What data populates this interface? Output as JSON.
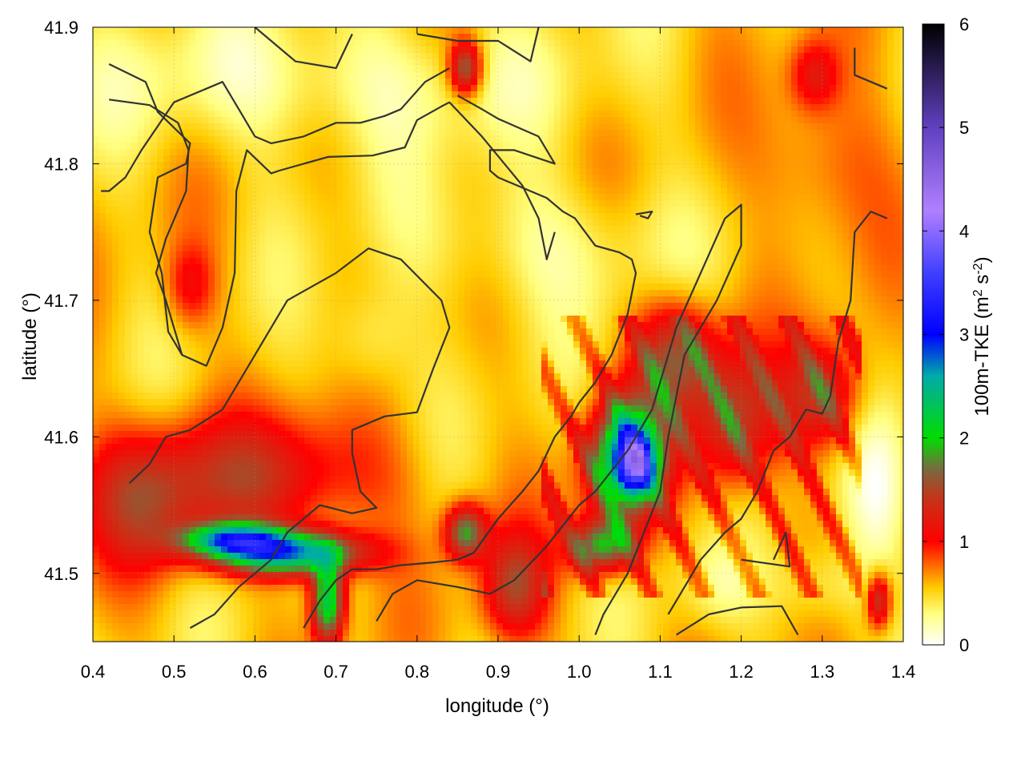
{
  "chart_data": {
    "type": "heatmap",
    "title": "",
    "xlabel": "longitude (°)",
    "ylabel": "latitude (°)",
    "xlim": [
      0.4,
      1.4
    ],
    "ylim": [
      41.45,
      41.9
    ],
    "x_ticks": [
      0.4,
      0.5,
      0.6,
      0.7,
      0.8,
      0.9,
      1.0,
      1.1,
      1.2,
      1.3,
      1.4
    ],
    "x_tick_labels": [
      "0.4",
      "0.5",
      "0.6",
      "0.7",
      "0.8",
      "0.9",
      "1.0",
      "1.1",
      "1.2",
      "1.3",
      "1.4"
    ],
    "y_ticks": [
      41.5,
      41.6,
      41.7,
      41.8,
      41.9
    ],
    "y_tick_labels": [
      "41.5",
      "41.6",
      "41.7",
      "41.8",
      "41.9"
    ],
    "grid": true,
    "colorbar": {
      "label": "100m-TKE (m² s⁻²)",
      "label_main": "100m-TKE (m",
      "label_sup1": "2",
      "label_mid": " s",
      "label_sup2": "-2",
      "label_end": ")",
      "range": [
        0,
        6
      ],
      "ticks": [
        0,
        1,
        2,
        3,
        4,
        5,
        6
      ],
      "tick_labels": [
        "0",
        "1",
        "2",
        "3",
        "4",
        "5",
        "6"
      ],
      "stops": [
        {
          "value": 0.0,
          "color": "#ffffff"
        },
        {
          "value": 0.3,
          "color": "#ffff80"
        },
        {
          "value": 0.55,
          "color": "#ffcc00"
        },
        {
          "value": 1.0,
          "color": "#ff0000"
        },
        {
          "value": 1.4,
          "color": "#c83218"
        },
        {
          "value": 1.7,
          "color": "#7a6a40"
        },
        {
          "value": 2.0,
          "color": "#00dd00"
        },
        {
          "value": 2.6,
          "color": "#00aaaa"
        },
        {
          "value": 3.0,
          "color": "#0000ff"
        },
        {
          "value": 3.6,
          "color": "#4040ff"
        },
        {
          "value": 4.2,
          "color": "#b080ff"
        },
        {
          "value": 5.0,
          "color": "#6040c0"
        },
        {
          "value": 6.0,
          "color": "#000000"
        }
      ]
    },
    "contour_color": "#333333",
    "tke_features": [
      {
        "lon": 0.68,
        "lat": 41.86,
        "sx": 0.3,
        "sy": 0.05,
        "v": -0.35
      },
      {
        "lon": 0.95,
        "lat": 41.74,
        "sx": 0.15,
        "sy": 0.05,
        "v": -0.3
      },
      {
        "lon": 0.74,
        "lat": 41.67,
        "sx": 0.05,
        "sy": 0.04,
        "v": -0.3
      },
      {
        "lon": 1.37,
        "lat": 41.56,
        "sx": 0.04,
        "sy": 0.06,
        "v": -0.45
      },
      {
        "lon": 1.3,
        "lat": 41.49,
        "sx": 0.06,
        "sy": 0.03,
        "v": -0.3
      },
      {
        "lon": 1.17,
        "lat": 41.49,
        "sx": 0.05,
        "sy": 0.03,
        "v": -0.25
      },
      {
        "lon": 0.6,
        "lat": 41.57,
        "sx": 0.16,
        "sy": 0.045,
        "v": 0.75
      },
      {
        "lon": 0.46,
        "lat": 41.55,
        "sx": 0.07,
        "sy": 0.05,
        "v": 0.6
      },
      {
        "lon": 0.64,
        "lat": 41.515,
        "sx": 0.09,
        "sy": 0.016,
        "v": 2.1
      },
      {
        "lon": 0.57,
        "lat": 41.525,
        "sx": 0.06,
        "sy": 0.012,
        "v": 1.6
      },
      {
        "lon": 0.69,
        "lat": 41.48,
        "sx": 0.02,
        "sy": 0.03,
        "v": 1.8
      },
      {
        "lon": 0.86,
        "lat": 41.53,
        "sx": 0.025,
        "sy": 0.02,
        "v": 1.3
      },
      {
        "lon": 1.06,
        "lat": 41.585,
        "sx": 0.045,
        "sy": 0.04,
        "v": 2.2
      },
      {
        "lon": 1.07,
        "lat": 41.58,
        "sx": 0.02,
        "sy": 0.02,
        "v": 1.5
      },
      {
        "lon": 1.03,
        "lat": 41.52,
        "sx": 0.04,
        "sy": 0.02,
        "v": 1.4
      },
      {
        "lon": 1.12,
        "lat": 41.66,
        "sx": 0.05,
        "sy": 0.04,
        "v": 1.0
      },
      {
        "lon": 1.19,
        "lat": 41.61,
        "sx": 0.05,
        "sy": 0.05,
        "v": 0.9
      },
      {
        "lon": 1.3,
        "lat": 41.63,
        "sx": 0.05,
        "sy": 0.04,
        "v": 0.9
      },
      {
        "lon": 0.92,
        "lat": 41.49,
        "sx": 0.04,
        "sy": 0.04,
        "v": 0.9
      },
      {
        "lon": 0.86,
        "lat": 41.87,
        "sx": 0.02,
        "sy": 0.02,
        "v": 1.2
      },
      {
        "lon": 0.52,
        "lat": 41.71,
        "sx": 0.03,
        "sy": 0.03,
        "v": 0.5
      },
      {
        "lon": 1.3,
        "lat": 41.8,
        "sx": 0.08,
        "sy": 0.06,
        "v": 0.35
      },
      {
        "lon": 1.29,
        "lat": 41.865,
        "sx": 0.03,
        "sy": 0.025,
        "v": 0.6
      },
      {
        "lon": 1.37,
        "lat": 41.48,
        "sx": 0.015,
        "sy": 0.02,
        "v": 1.0
      }
    ],
    "contours": [
      [
        [
          0.42,
          41.873
        ],
        [
          0.465,
          41.86
        ],
        [
          0.48,
          41.838
        ],
        [
          0.52,
          41.815
        ],
        [
          0.515,
          41.8
        ],
        [
          0.48,
          41.79
        ],
        [
          0.47,
          41.75
        ],
        [
          0.485,
          41.72
        ],
        [
          0.493,
          41.677
        ],
        [
          0.51,
          41.66
        ]
      ],
      [
        [
          0.42,
          41.847
        ],
        [
          0.47,
          41.843
        ],
        [
          0.505,
          41.83
        ],
        [
          0.518,
          41.81
        ],
        [
          0.515,
          41.78
        ],
        [
          0.49,
          41.745
        ],
        [
          0.478,
          41.72
        ],
        [
          0.49,
          41.7
        ],
        [
          0.51,
          41.66
        ],
        [
          0.54,
          41.652
        ],
        [
          0.56,
          41.68
        ],
        [
          0.575,
          41.72
        ],
        [
          0.577,
          41.78
        ],
        [
          0.59,
          41.81
        ],
        [
          0.62,
          41.793
        ],
        [
          0.63,
          41.795
        ],
        [
          0.69,
          41.805
        ],
        [
          0.745,
          41.806
        ],
        [
          0.785,
          41.812
        ],
        [
          0.8,
          41.832
        ],
        [
          0.83,
          41.842
        ],
        [
          0.84,
          41.845
        ],
        [
          0.88,
          41.82
        ],
        [
          0.93,
          41.784
        ],
        [
          0.95,
          41.76
        ],
        [
          0.96,
          41.73
        ],
        [
          0.97,
          41.75
        ]
      ],
      [
        [
          0.41,
          41.78
        ],
        [
          0.42,
          41.78
        ],
        [
          0.44,
          41.79
        ],
        [
          0.46,
          41.81
        ],
        [
          0.5,
          41.845
        ],
        [
          0.54,
          41.855
        ],
        [
          0.56,
          41.86
        ],
        [
          0.58,
          41.84
        ],
        [
          0.6,
          41.82
        ],
        [
          0.62,
          41.815
        ],
        [
          0.66,
          41.82
        ],
        [
          0.7,
          41.83
        ],
        [
          0.73,
          41.83
        ],
        [
          0.76,
          41.835
        ],
        [
          0.78,
          41.84
        ],
        [
          0.81,
          41.86
        ],
        [
          0.84,
          41.87
        ]
      ],
      [
        [
          0.6,
          41.9
        ],
        [
          0.65,
          41.875
        ],
        [
          0.7,
          41.87
        ],
        [
          0.72,
          41.895
        ]
      ],
      [
        [
          0.8,
          41.895
        ],
        [
          0.85,
          41.89
        ],
        [
          0.9,
          41.89
        ],
        [
          0.94,
          41.875
        ],
        [
          0.95,
          41.9
        ]
      ],
      [
        [
          0.445,
          41.566
        ],
        [
          0.47,
          41.58
        ],
        [
          0.49,
          41.6
        ],
        [
          0.52,
          41.605
        ],
        [
          0.56,
          41.62
        ],
        [
          0.6,
          41.66
        ],
        [
          0.64,
          41.7
        ],
        [
          0.7,
          41.72
        ],
        [
          0.74,
          41.738
        ],
        [
          0.78,
          41.73
        ],
        [
          0.83,
          41.7
        ],
        [
          0.84,
          41.68
        ],
        [
          0.82,
          41.65
        ],
        [
          0.8,
          41.618
        ],
        [
          0.76,
          41.615
        ],
        [
          0.72,
          41.605
        ],
        [
          0.72,
          41.588
        ],
        [
          0.73,
          41.56
        ],
        [
          0.75,
          41.548
        ],
        [
          0.72,
          41.544
        ],
        [
          0.68,
          41.55
        ],
        [
          0.66,
          41.54
        ],
        [
          0.64,
          41.53
        ],
        [
          0.62,
          41.51
        ],
        [
          0.58,
          41.49
        ],
        [
          0.55,
          41.47
        ],
        [
          0.52,
          41.46
        ]
      ],
      [
        [
          0.66,
          41.46
        ],
        [
          0.68,
          41.48
        ],
        [
          0.7,
          41.495
        ],
        [
          0.72,
          41.503
        ],
        [
          0.75,
          41.503
        ],
        [
          0.78,
          41.506
        ],
        [
          0.82,
          41.508
        ],
        [
          0.85,
          41.51
        ],
        [
          0.87,
          41.515
        ],
        [
          0.9,
          41.54
        ],
        [
          0.93,
          41.56
        ],
        [
          0.95,
          41.575
        ],
        [
          0.97,
          41.6
        ],
        [
          0.99,
          41.615
        ],
        [
          1.0,
          41.625
        ],
        [
          1.02,
          41.64
        ],
        [
          1.04,
          41.66
        ],
        [
          1.06,
          41.69
        ],
        [
          1.07,
          41.72
        ],
        [
          1.065,
          41.73
        ],
        [
          1.05,
          41.735
        ],
        [
          1.02,
          41.74
        ],
        [
          0.995,
          41.76
        ],
        [
          0.98,
          41.765
        ],
        [
          0.96,
          41.775
        ],
        [
          0.92,
          41.785
        ],
        [
          0.9,
          41.79
        ],
        [
          0.89,
          41.795
        ],
        [
          0.89,
          41.81
        ],
        [
          0.92,
          41.81
        ],
        [
          0.97,
          41.8
        ],
        [
          0.95,
          41.82
        ],
        [
          0.9,
          41.833
        ],
        [
          0.88,
          41.84
        ],
        [
          0.85,
          41.85
        ]
      ],
      [
        [
          1.07,
          41.763
        ],
        [
          1.09,
          41.765
        ],
        [
          1.085,
          41.76
        ],
        [
          1.075,
          41.762
        ]
      ],
      [
        [
          0.75,
          41.465
        ],
        [
          0.77,
          41.485
        ],
        [
          0.8,
          41.495
        ],
        [
          0.85,
          41.49
        ],
        [
          0.89,
          41.485
        ],
        [
          0.92,
          41.495
        ],
        [
          0.96,
          41.52
        ],
        [
          1.0,
          41.55
        ],
        [
          1.02,
          41.56
        ],
        [
          1.06,
          41.59
        ],
        [
          1.09,
          41.62
        ],
        [
          1.12,
          41.68
        ],
        [
          1.15,
          41.72
        ],
        [
          1.18,
          41.76
        ],
        [
          1.2,
          41.77
        ],
        [
          1.2,
          41.74
        ],
        [
          1.17,
          41.7
        ],
        [
          1.13,
          41.66
        ],
        [
          1.11,
          41.6
        ],
        [
          1.1,
          41.56
        ],
        [
          1.08,
          41.53
        ],
        [
          1.06,
          41.5
        ],
        [
          1.03,
          41.47
        ],
        [
          1.02,
          41.455
        ]
      ],
      [
        [
          1.12,
          41.455
        ],
        [
          1.16,
          41.47
        ],
        [
          1.2,
          41.475
        ],
        [
          1.25,
          41.476
        ],
        [
          1.27,
          41.455
        ]
      ],
      [
        [
          1.2,
          41.51
        ],
        [
          1.26,
          41.505
        ],
        [
          1.255,
          41.53
        ],
        [
          1.24,
          41.51
        ]
      ],
      [
        [
          1.34,
          41.885
        ],
        [
          1.34,
          41.865
        ],
        [
          1.38,
          41.855
        ]
      ],
      [
        [
          1.38,
          41.76
        ],
        [
          1.36,
          41.765
        ],
        [
          1.34,
          41.75
        ],
        [
          1.335,
          41.7
        ],
        [
          1.32,
          41.67
        ],
        [
          1.31,
          41.63
        ],
        [
          1.3,
          41.617
        ],
        [
          1.28,
          41.62
        ],
        [
          1.26,
          41.6
        ],
        [
          1.24,
          41.59
        ],
        [
          1.22,
          41.56
        ],
        [
          1.2,
          41.54
        ],
        [
          1.18,
          41.53
        ],
        [
          1.15,
          41.51
        ],
        [
          1.13,
          41.49
        ],
        [
          1.11,
          41.47
        ]
      ]
    ]
  }
}
